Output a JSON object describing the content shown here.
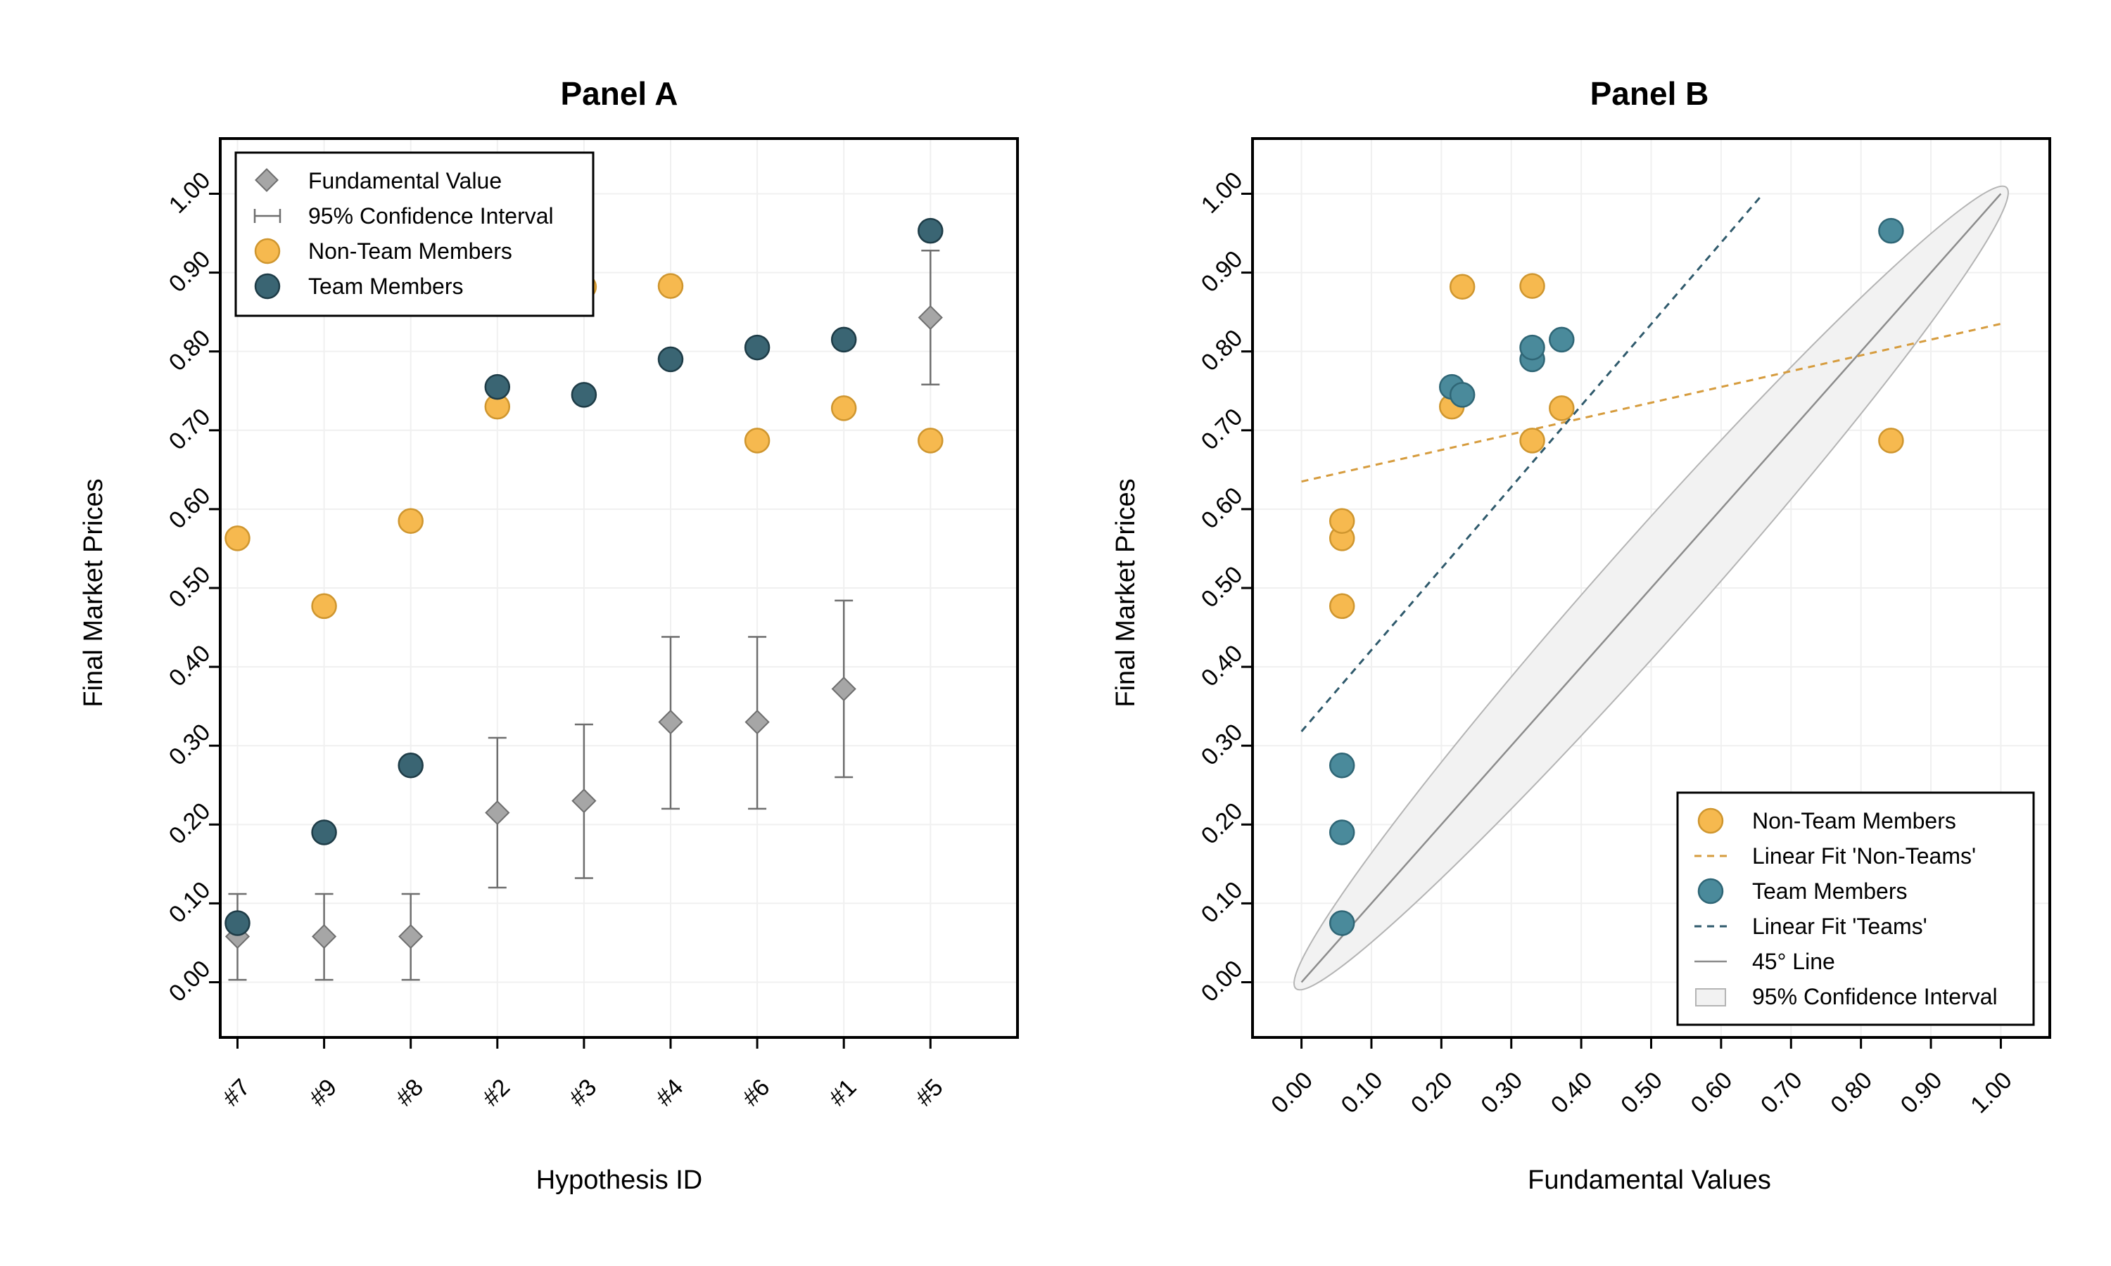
{
  "colors": {
    "orange": "#f6b94f",
    "orange_stroke": "#cf962f",
    "teal_dark": "#3a6573",
    "teal_dark_stroke": "#1e3c47",
    "teal_light": "#4a8a9b",
    "teal_light_stroke": "#2f6676",
    "gray_marker": "#a6a6a6",
    "gray_stroke": "#6e6e6e",
    "fit_orange": "#d69c3e",
    "fit_teal": "#2f5a6c",
    "line45": "#8c8c8c",
    "ellipse_fill": "#f2f2f2",
    "ellipse_stroke": "#b4b4b4"
  },
  "chart_data": [
    {
      "type": "scatter",
      "title": "Panel A",
      "xlabel": "Hypothesis ID",
      "ylabel": "Final Market Prices",
      "categories": [
        "#7",
        "#9",
        "#8",
        "#2",
        "#3",
        "#4",
        "#6",
        "#1",
        "#5"
      ],
      "ylim": [
        -0.07,
        1.07
      ],
      "yticks": [
        "0.00",
        "0.10",
        "0.20",
        "0.30",
        "0.40",
        "0.50",
        "0.60",
        "0.70",
        "0.80",
        "0.90",
        "1.00"
      ],
      "grid": true,
      "legend_position": "top-left",
      "legend": [
        "Fundamental Value",
        "95% Confidence Interval",
        "Non-Team Members",
        "Team Members"
      ],
      "series": [
        {
          "name": "Fundamental Value",
          "values": [
            0.058,
            0.058,
            0.058,
            0.215,
            0.23,
            0.33,
            0.33,
            0.372,
            0.843
          ]
        },
        {
          "name": "95% Confidence Interval",
          "low": [
            0.003,
            0.003,
            0.003,
            0.12,
            0.132,
            0.22,
            0.22,
            0.26,
            0.758
          ],
          "high": [
            0.112,
            0.112,
            0.112,
            0.31,
            0.327,
            0.438,
            0.438,
            0.484,
            0.928
          ]
        },
        {
          "name": "Non-Team Members",
          "values": [
            0.563,
            0.477,
            0.585,
            0.73,
            0.882,
            0.883,
            0.687,
            0.728,
            0.687
          ]
        },
        {
          "name": "Team Members",
          "values": [
            0.075,
            0.19,
            0.275,
            0.755,
            0.745,
            0.79,
            0.805,
            0.815,
            0.953
          ]
        }
      ]
    },
    {
      "type": "scatter",
      "title": "Panel B",
      "xlabel": "Fundamental Values",
      "ylabel": "Final Market Prices",
      "xlim": [
        -0.07,
        1.07
      ],
      "ylim": [
        -0.07,
        1.07
      ],
      "xticks": [
        "0.00",
        "0.10",
        "0.20",
        "0.30",
        "0.40",
        "0.50",
        "0.60",
        "0.70",
        "0.80",
        "0.90",
        "1.00"
      ],
      "yticks": [
        "0.00",
        "0.10",
        "0.20",
        "0.30",
        "0.40",
        "0.50",
        "0.60",
        "0.70",
        "0.80",
        "0.90",
        "1.00"
      ],
      "grid": true,
      "legend_position": "bottom-right",
      "legend": [
        "Non-Team Members",
        "Linear Fit 'Non-Teams'",
        "Team Members",
        "Linear Fit 'Teams'",
        "45° Line",
        "95% Confidence Interval"
      ],
      "series": [
        {
          "name": "Non-Team Members",
          "x": [
            0.058,
            0.058,
            0.058,
            0.215,
            0.23,
            0.33,
            0.33,
            0.372,
            0.843
          ],
          "y": [
            0.563,
            0.477,
            0.585,
            0.73,
            0.882,
            0.883,
            0.687,
            0.728,
            0.687
          ]
        },
        {
          "name": "Team Members",
          "x": [
            0.058,
            0.058,
            0.058,
            0.215,
            0.23,
            0.33,
            0.33,
            0.372,
            0.843
          ],
          "y": [
            0.075,
            0.19,
            0.275,
            0.755,
            0.745,
            0.79,
            0.805,
            0.815,
            0.953
          ]
        },
        {
          "name": "Linear Fit 'Non-Teams'",
          "x": [
            0.0,
            1.0
          ],
          "y": [
            0.635,
            0.835
          ]
        },
        {
          "name": "Linear Fit 'Teams'",
          "x": [
            0.0,
            0.66
          ],
          "y": [
            0.318,
            1.0
          ]
        },
        {
          "name": "45° Line",
          "x": [
            0.0,
            1.0
          ],
          "y": [
            0.0,
            1.0
          ]
        },
        {
          "name": "95% Confidence Interval",
          "shape": "ellipse",
          "along": "45° Line"
        }
      ]
    }
  ]
}
